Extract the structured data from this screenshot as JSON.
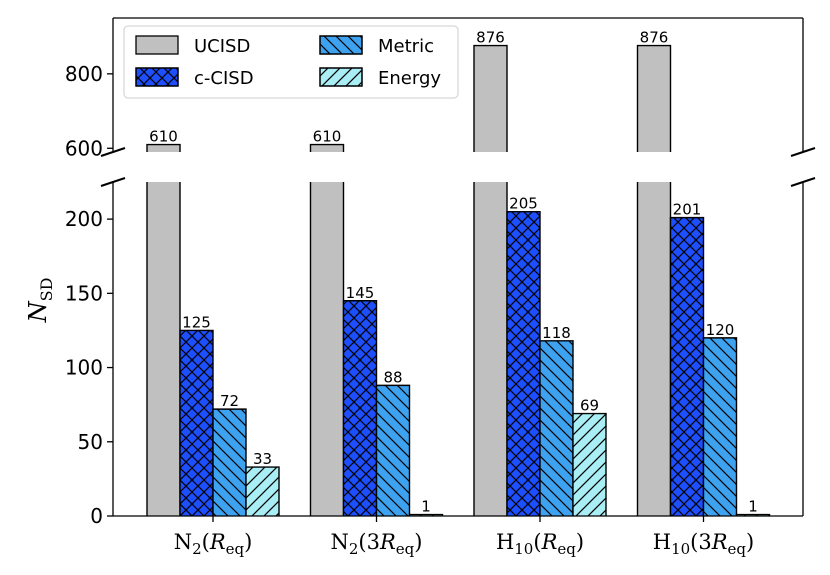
{
  "chart_data": {
    "type": "bar",
    "broken_axis": true,
    "ylabel": "N",
    "ylabel_sub": "SD",
    "categories": [
      {
        "main": "N",
        "sub": "2",
        "arg": "(",
        "argR": "R",
        "argRsub": "eq",
        "close": ")"
      },
      {
        "main": "N",
        "sub": "2",
        "arg": "(3",
        "argR": "R",
        "argRsub": "eq",
        "close": ")"
      },
      {
        "main": "H",
        "sub": "10",
        "arg": "(",
        "argR": "R",
        "argRsub": "eq",
        "close": ")"
      },
      {
        "main": "H",
        "sub": "10",
        "arg": "(3",
        "argR": "R",
        "argRsub": "eq",
        "close": ")"
      }
    ],
    "series": [
      {
        "name": "UCISD",
        "values": [
          610,
          610,
          876,
          876
        ],
        "color": "#c0c0c0",
        "hatch": "none"
      },
      {
        "name": "c-CISD",
        "values": [
          125,
          145,
          205,
          201
        ],
        "color": "#1e4fff",
        "hatch": "cross"
      },
      {
        "name": "Metric",
        "values": [
          72,
          88,
          118,
          120
        ],
        "color": "#3da2ef",
        "hatch": "back"
      },
      {
        "name": "Energy",
        "values": [
          33,
          1,
          69,
          1
        ],
        "color": "#a9eef5",
        "hatch": "fwd"
      }
    ],
    "value_labels": [
      [
        "610",
        "610",
        "876",
        "876"
      ],
      [
        "125",
        "145",
        "205",
        "201"
      ],
      [
        "72",
        "88",
        "118",
        "120"
      ],
      [
        "33",
        "1",
        "69",
        "1"
      ]
    ],
    "lower_axis": {
      "ylim": [
        0,
        225
      ],
      "ticks": [
        "0",
        "50",
        "100",
        "150",
        "200"
      ]
    },
    "upper_axis": {
      "ylim": [
        590,
        950
      ],
      "ticks": [
        "600",
        "800"
      ]
    },
    "legend": {
      "position": "top-left",
      "columns": 2
    }
  }
}
